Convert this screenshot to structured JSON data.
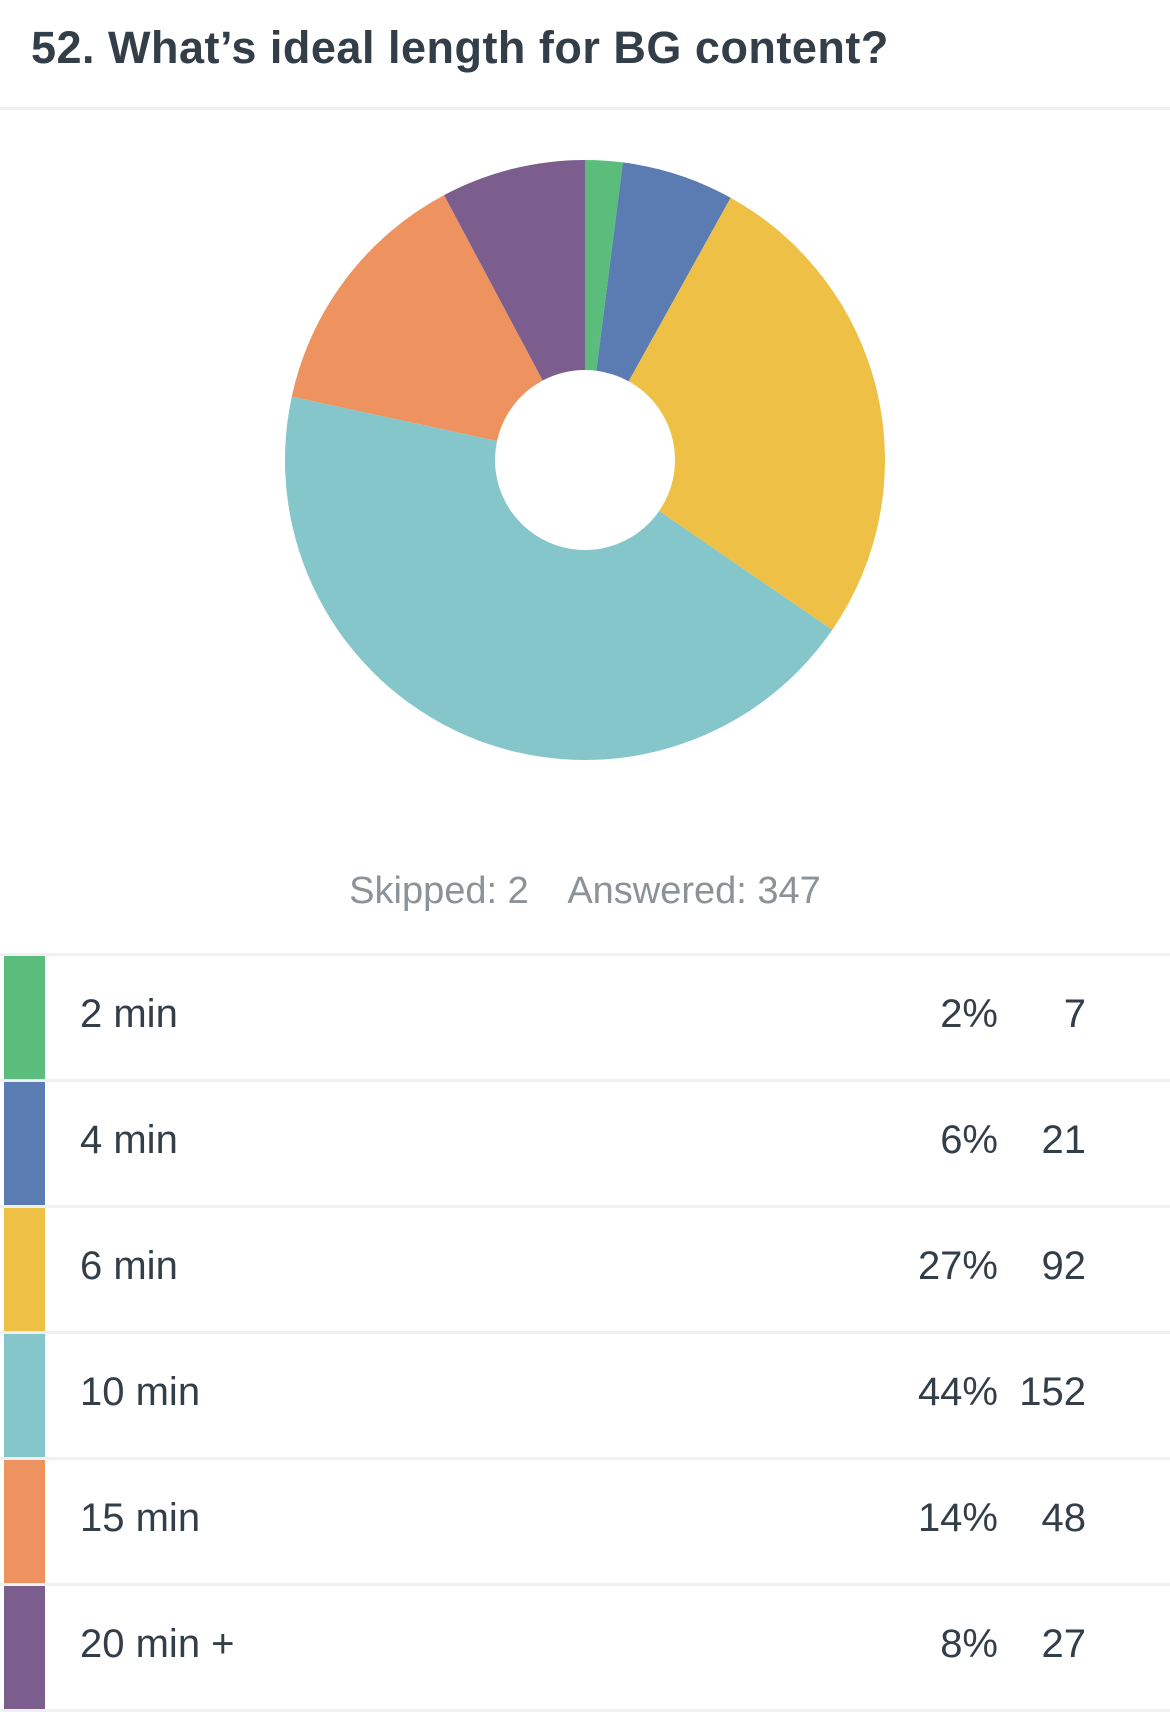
{
  "question": {
    "title": "52. What’s ideal length for BG content?"
  },
  "summary": {
    "skipped_label": "Skipped: 2",
    "answered_label": "Answered: 347"
  },
  "chart_data": {
    "type": "pie",
    "title": "52. What’s ideal length for BG content?",
    "categories": [
      "2 min",
      "4 min",
      "6 min",
      "10 min",
      "15 min",
      "20 min +"
    ],
    "values": [
      7,
      21,
      92,
      152,
      48,
      27
    ],
    "percents": [
      "2%",
      "6%",
      "27%",
      "44%",
      "14%",
      "8%"
    ],
    "colors": [
      "#5bbd7b",
      "#5b7bb3",
      "#eec146",
      "#85c6ca",
      "#ee925f",
      "#7b5e8d"
    ],
    "donut": true,
    "legend": "table-below"
  },
  "table": {
    "rows": [
      {
        "label": "2 min",
        "percent": "2%",
        "count": "7",
        "color": "#5bbd7b"
      },
      {
        "label": "4 min",
        "percent": "6%",
        "count": "21",
        "color": "#5b7bb3"
      },
      {
        "label": "6 min",
        "percent": "27%",
        "count": "92",
        "color": "#eec146"
      },
      {
        "label": "10 min",
        "percent": "44%",
        "count": "152",
        "color": "#85c6ca"
      },
      {
        "label": "15 min",
        "percent": "14%",
        "count": "48",
        "color": "#ee925f"
      },
      {
        "label": "20 min +",
        "percent": "8%",
        "count": "27",
        "color": "#7b5e8d"
      }
    ]
  }
}
